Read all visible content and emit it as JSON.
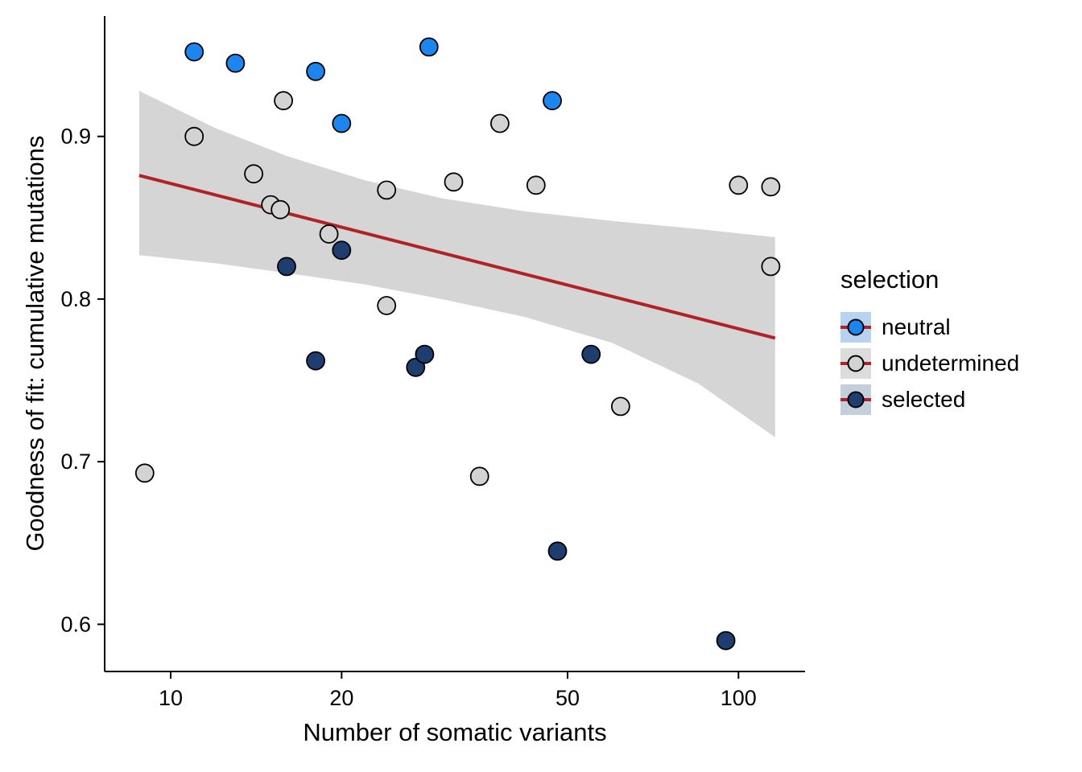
{
  "chart_data": {
    "type": "scatter",
    "title": "",
    "xlabel": "Number of somatic variants",
    "ylabel": "Goodness of fit: cumulative mutations",
    "x_scale": "log10",
    "x_ticks": [
      10,
      20,
      50,
      100
    ],
    "y_ticks": [
      0.6,
      0.7,
      0.8,
      0.9
    ],
    "x_domain": [
      7.65,
      131
    ],
    "y_domain": [
      0.571,
      0.974
    ],
    "grid": "off",
    "point_stroke": "#000000",
    "series": [
      {
        "name": "undetermined",
        "color": "#D3D3D3",
        "points": [
          [
            9,
            0.693
          ],
          [
            11,
            0.9
          ],
          [
            14,
            0.877
          ],
          [
            15.8,
            0.922
          ],
          [
            15,
            0.858
          ],
          [
            15.6,
            0.855
          ],
          [
            19,
            0.84
          ],
          [
            24,
            0.867
          ],
          [
            24,
            0.796
          ],
          [
            31.5,
            0.872
          ],
          [
            35,
            0.691
          ],
          [
            38,
            0.908
          ],
          [
            44,
            0.87
          ],
          [
            62,
            0.734
          ],
          [
            100,
            0.87
          ],
          [
            114,
            0.869
          ],
          [
            114,
            0.82
          ]
        ]
      },
      {
        "name": "selected",
        "color": "#1D3E6F",
        "points": [
          [
            16,
            0.82
          ],
          [
            18,
            0.762
          ],
          [
            20,
            0.83
          ],
          [
            27,
            0.758
          ],
          [
            28,
            0.766
          ],
          [
            55,
            0.766
          ],
          [
            48,
            0.645
          ],
          [
            95,
            0.59
          ]
        ]
      },
      {
        "name": "neutral",
        "color": "#1C86EE",
        "points": [
          [
            11,
            0.952
          ],
          [
            13,
            0.945
          ],
          [
            18,
            0.94
          ],
          [
            20,
            0.908
          ],
          [
            28.5,
            0.955
          ],
          [
            47,
            0.922
          ]
        ]
      }
    ],
    "regression": {
      "color": "#B02226",
      "line": [
        [
          8.8,
          0.876
        ],
        [
          116,
          0.776
        ]
      ],
      "band_color": "#D5D5D5",
      "band_upper": [
        [
          8.8,
          0.928
        ],
        [
          12,
          0.905
        ],
        [
          16,
          0.888
        ],
        [
          22,
          0.873
        ],
        [
          30,
          0.862
        ],
        [
          42,
          0.854
        ],
        [
          60,
          0.848
        ],
        [
          85,
          0.843
        ],
        [
          116,
          0.838
        ]
      ],
      "band_lower": [
        [
          8.8,
          0.827
        ],
        [
          12,
          0.822
        ],
        [
          16,
          0.816
        ],
        [
          22,
          0.809
        ],
        [
          30,
          0.8
        ],
        [
          42,
          0.789
        ],
        [
          60,
          0.773
        ],
        [
          85,
          0.748
        ],
        [
          116,
          0.715
        ]
      ]
    },
    "legend": {
      "title": "selection",
      "line_color": "#B02226",
      "entries": [
        {
          "label": "neutral",
          "point_color": "#1C86EE",
          "key_bg": "#B8D3F0"
        },
        {
          "label": "undetermined",
          "point_color": "#D3D3D3",
          "key_bg": "#DCDCDC"
        },
        {
          "label": "selected",
          "point_color": "#1D3E6F",
          "key_bg": "#C4CEDD"
        }
      ]
    }
  }
}
